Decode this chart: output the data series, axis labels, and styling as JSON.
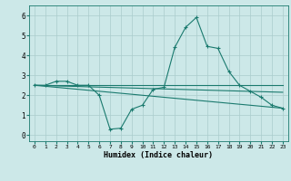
{
  "x_all": [
    0,
    1,
    2,
    3,
    4,
    5,
    6,
    7,
    8,
    9,
    10,
    11,
    12,
    13,
    14,
    15,
    16,
    17,
    18,
    19,
    20,
    21,
    22,
    23
  ],
  "line1": [
    2.5,
    2.5,
    2.7,
    2.7,
    2.5,
    2.5,
    2.0,
    0.3,
    0.35,
    1.3,
    1.5,
    2.3,
    2.4,
    4.4,
    5.4,
    5.9,
    4.45,
    4.35,
    3.2,
    2.5,
    2.2,
    1.9,
    1.5,
    1.35
  ],
  "line2_x": [
    0,
    23
  ],
  "line2_y": [
    2.5,
    2.5
  ],
  "line3_x": [
    0,
    23
  ],
  "line3_y": [
    2.5,
    1.35
  ],
  "line4_x": [
    0,
    23
  ],
  "line4_y": [
    2.5,
    2.15
  ],
  "line_color": "#1a7a6e",
  "bg_color": "#cce8e8",
  "grid_color": "#aacccc",
  "xlabel": "Humidex (Indice chaleur)",
  "ylim": [
    -0.3,
    6.5
  ],
  "xlim": [
    -0.5,
    23.5
  ],
  "yticks": [
    0,
    1,
    2,
    3,
    4,
    5,
    6
  ],
  "xticks": [
    0,
    1,
    2,
    3,
    4,
    5,
    6,
    7,
    8,
    9,
    10,
    11,
    12,
    13,
    14,
    15,
    16,
    17,
    18,
    19,
    20,
    21,
    22,
    23
  ]
}
